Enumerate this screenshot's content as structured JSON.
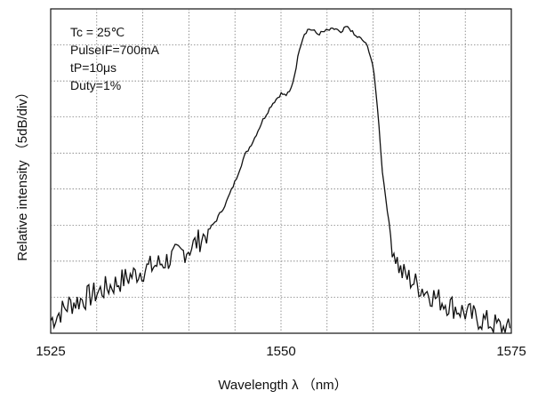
{
  "chart_data": {
    "type": "line",
    "xlabel": "Wavelength  λ  （nm）",
    "ylabel": "Relative  intensity  （5dB/div）",
    "x_ticks": [
      "1525",
      "1550",
      "1575"
    ],
    "xlim": [
      1525,
      1575
    ],
    "ylim": [
      0,
      9
    ],
    "y_unit_note": "5dB/div",
    "grid": true,
    "legend": "none",
    "annotations": [
      "Tc = 25℃",
      "PulseIF=700mA",
      "tP=10μs",
      "Duty=1%"
    ],
    "series": [
      {
        "color": "#111111",
        "x": [
          1525,
          1527,
          1529,
          1531,
          1533,
          1535,
          1537,
          1539,
          1540,
          1541,
          1542,
          1543,
          1544,
          1545,
          1546,
          1547,
          1548,
          1549,
          1550,
          1550.5,
          1551,
          1551.5,
          1552,
          1552.5,
          1553,
          1553.5,
          1554,
          1555,
          1556,
          1556.5,
          1557,
          1557.5,
          1558,
          1558.5,
          1559,
          1559.5,
          1560,
          1560.5,
          1561,
          1562,
          1563,
          1565,
          1567,
          1569,
          1571,
          1573,
          1575
        ],
        "y": [
          0.35,
          0.8,
          1.0,
          1.25,
          1.5,
          1.75,
          1.95,
          2.2,
          2.35,
          2.55,
          2.8,
          3.15,
          3.6,
          4.2,
          4.9,
          5.35,
          5.9,
          6.35,
          6.65,
          6.6,
          6.7,
          7.2,
          7.9,
          8.3,
          8.45,
          8.4,
          8.3,
          8.4,
          8.45,
          8.3,
          8.5,
          8.45,
          8.25,
          8.2,
          8.1,
          7.9,
          7.4,
          6.2,
          4.5,
          2.5,
          1.7,
          1.3,
          0.95,
          0.7,
          0.45,
          0.25,
          0.05
        ]
      }
    ]
  }
}
